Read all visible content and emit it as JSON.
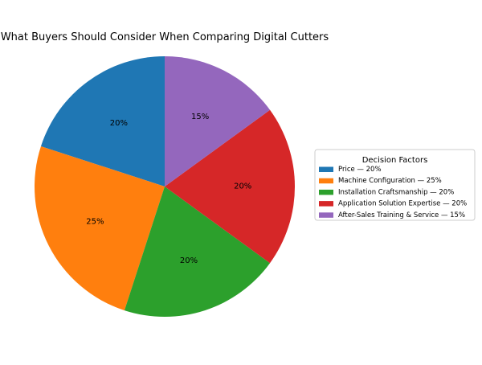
{
  "chart_data": {
    "type": "pie",
    "title": "What Buyers Should Consider When Comparing Digital Cutters",
    "categories": [
      "Price",
      "Machine Configuration",
      "Installation Craftsmanship",
      "Application Solution Expertise",
      "After-Sales Training & Service"
    ],
    "values": [
      20,
      25,
      20,
      20,
      15
    ],
    "slice_labels": [
      "20%",
      "25%",
      "20%",
      "20%",
      "15%"
    ],
    "colors": [
      "#1f77b4",
      "#ff7f0e",
      "#2ca02c",
      "#d62728",
      "#9467bd"
    ],
    "start_angle_deg": 90,
    "direction": "counterclockwise",
    "legend": {
      "title": "Decision Factors",
      "placement": "right",
      "entries": [
        "Price — 20%",
        "Machine Configuration — 25%",
        "Installation Craftsmanship — 20%",
        "Application Solution Expertise — 20%",
        "After-Sales Training & Service — 15%"
      ]
    }
  }
}
